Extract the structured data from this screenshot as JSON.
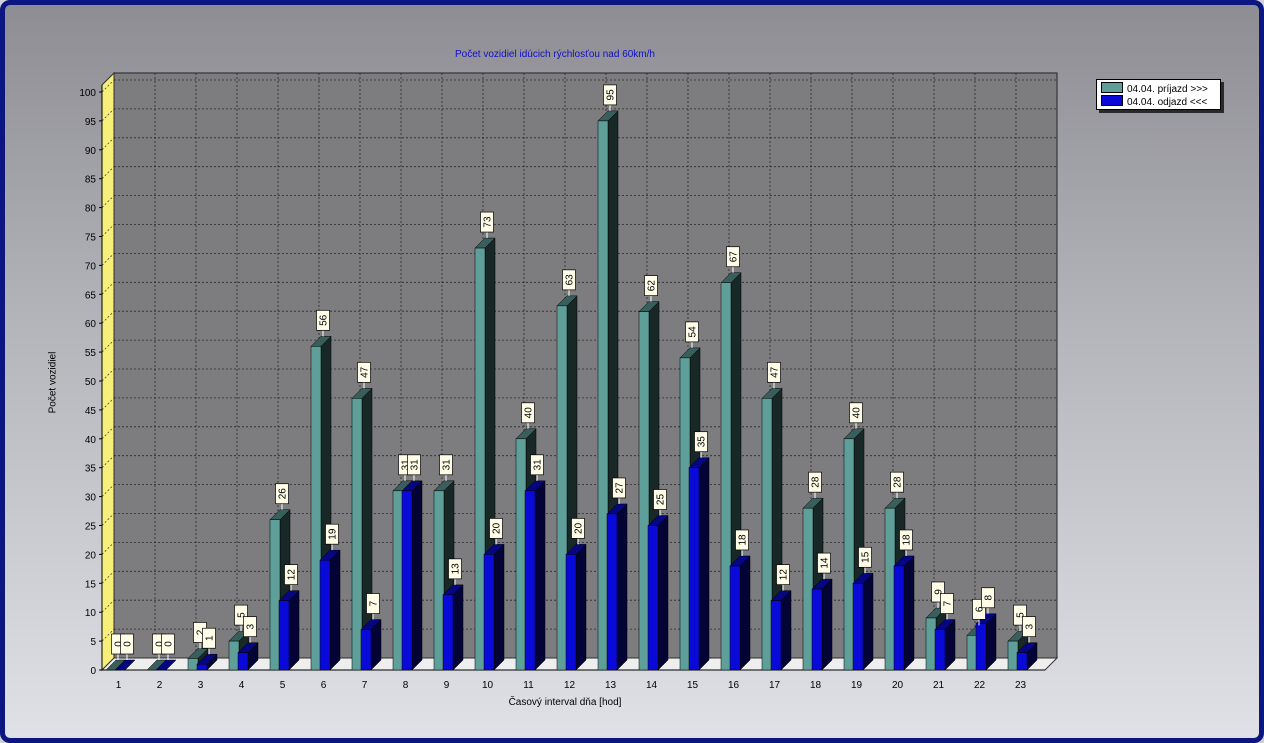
{
  "chart_data": {
    "type": "bar",
    "title": "Počet vozidiel idúcich rýchlosťou nad 60km/h",
    "xlabel": "Časový interval dňa [hod]",
    "ylabel": "Počet vozidiel",
    "ylim": [
      0,
      100
    ],
    "yticks": [
      0,
      5,
      10,
      15,
      20,
      25,
      30,
      35,
      40,
      45,
      50,
      55,
      60,
      65,
      70,
      75,
      80,
      85,
      90,
      95,
      100
    ],
    "categories": [
      "1",
      "2",
      "3",
      "4",
      "5",
      "6",
      "7",
      "8",
      "9",
      "10",
      "11",
      "12",
      "13",
      "14",
      "15",
      "16",
      "17",
      "18",
      "19",
      "20",
      "21",
      "22",
      "23"
    ],
    "series": [
      {
        "name": "04.04.  príjazd >>>",
        "color": "#5f9f9a",
        "values": [
          0,
          0,
          2,
          5,
          26,
          56,
          47,
          31,
          31,
          73,
          40,
          63,
          95,
          62,
          54,
          67,
          47,
          28,
          40,
          28,
          9,
          6,
          5
        ]
      },
      {
        "name": "04.04.  odjazd <<<",
        "color": "#0a0ad8",
        "values": [
          0,
          0,
          1,
          3,
          12,
          19,
          7,
          31,
          13,
          20,
          31,
          20,
          27,
          25,
          35,
          18,
          12,
          14,
          15,
          18,
          7,
          8,
          3
        ]
      }
    ],
    "grid": true,
    "legend_position": "top-right",
    "style": "3d"
  }
}
